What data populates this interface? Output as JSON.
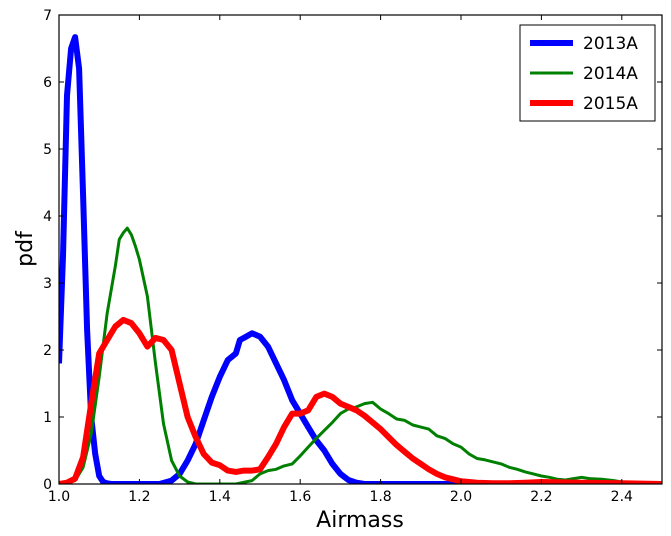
{
  "chart_data": {
    "type": "line",
    "title": "",
    "xlabel": "Airmass",
    "ylabel": "pdf",
    "xlim": [
      1.0,
      2.5
    ],
    "ylim": [
      0,
      7
    ],
    "x_ticks": [
      1.0,
      1.2,
      1.4,
      1.6,
      1.8,
      2.0,
      2.2,
      2.4
    ],
    "x_tick_labels": [
      "1.0",
      "1.2",
      "1.4",
      "1.6",
      "1.8",
      "2.0",
      "2.2",
      "2.4"
    ],
    "y_ticks": [
      0,
      1,
      2,
      3,
      4,
      5,
      6,
      7
    ],
    "y_tick_labels": [
      "0",
      "1",
      "2",
      "3",
      "4",
      "5",
      "6",
      "7"
    ],
    "grid": false,
    "legend_position": "top-right",
    "series": [
      {
        "name": "2013A",
        "color": "#0000ff",
        "line_width": "thick",
        "x": [
          1.0,
          1.01,
          1.02,
          1.03,
          1.04,
          1.05,
          1.06,
          1.07,
          1.08,
          1.09,
          1.1,
          1.11,
          1.12,
          1.13,
          1.15,
          1.2,
          1.25,
          1.28,
          1.3,
          1.32,
          1.34,
          1.36,
          1.38,
          1.4,
          1.42,
          1.44,
          1.45,
          1.46,
          1.48,
          1.5,
          1.52,
          1.54,
          1.56,
          1.58,
          1.6,
          1.62,
          1.64,
          1.66,
          1.68,
          1.7,
          1.72,
          1.74,
          1.76,
          1.8,
          1.9,
          2.0,
          2.5
        ],
        "y": [
          1.8,
          3.4,
          5.8,
          6.5,
          6.67,
          6.2,
          4.3,
          2.3,
          1.0,
          0.45,
          0.12,
          0.03,
          0.01,
          0.0,
          0.0,
          0.0,
          0.0,
          0.05,
          0.15,
          0.35,
          0.6,
          0.95,
          1.3,
          1.6,
          1.85,
          1.95,
          2.15,
          2.18,
          2.25,
          2.2,
          2.05,
          1.8,
          1.55,
          1.25,
          1.05,
          0.85,
          0.65,
          0.5,
          0.3,
          0.15,
          0.06,
          0.02,
          0.0,
          0.0,
          0.0,
          0.0,
          0.0
        ]
      },
      {
        "name": "2014A",
        "color": "#008000",
        "line_width": "medium",
        "x": [
          1.0,
          1.04,
          1.06,
          1.08,
          1.1,
          1.12,
          1.14,
          1.15,
          1.16,
          1.17,
          1.18,
          1.19,
          1.2,
          1.22,
          1.24,
          1.26,
          1.28,
          1.3,
          1.32,
          1.34,
          1.36,
          1.4,
          1.44,
          1.48,
          1.5,
          1.52,
          1.54,
          1.56,
          1.58,
          1.6,
          1.62,
          1.64,
          1.66,
          1.68,
          1.7,
          1.72,
          1.74,
          1.76,
          1.78,
          1.8,
          1.82,
          1.84,
          1.86,
          1.88,
          1.9,
          1.92,
          1.94,
          1.96,
          1.98,
          2.0,
          2.02,
          2.04,
          2.06,
          2.08,
          2.1,
          2.12,
          2.14,
          2.16,
          2.18,
          2.2,
          2.22,
          2.24,
          2.26,
          2.28,
          2.3,
          2.32,
          2.35,
          2.38,
          2.4,
          2.45,
          2.5
        ],
        "y": [
          0.0,
          0.05,
          0.25,
          0.75,
          1.6,
          2.55,
          3.25,
          3.65,
          3.75,
          3.82,
          3.72,
          3.55,
          3.35,
          2.8,
          1.8,
          0.9,
          0.35,
          0.12,
          0.03,
          0.0,
          0.0,
          0.0,
          0.0,
          0.05,
          0.15,
          0.2,
          0.22,
          0.27,
          0.3,
          0.42,
          0.55,
          0.68,
          0.8,
          0.92,
          1.05,
          1.12,
          1.15,
          1.2,
          1.22,
          1.12,
          1.05,
          0.97,
          0.95,
          0.88,
          0.85,
          0.82,
          0.72,
          0.68,
          0.6,
          0.55,
          0.45,
          0.38,
          0.36,
          0.33,
          0.3,
          0.25,
          0.22,
          0.18,
          0.15,
          0.12,
          0.1,
          0.07,
          0.06,
          0.08,
          0.1,
          0.08,
          0.07,
          0.05,
          0.03,
          0.01,
          0.0
        ]
      },
      {
        "name": "2015A",
        "color": "#ff0000",
        "line_width": "thick",
        "x": [
          1.0,
          1.02,
          1.04,
          1.06,
          1.08,
          1.1,
          1.12,
          1.14,
          1.16,
          1.18,
          1.2,
          1.22,
          1.24,
          1.26,
          1.28,
          1.3,
          1.32,
          1.34,
          1.36,
          1.38,
          1.4,
          1.42,
          1.44,
          1.46,
          1.48,
          1.5,
          1.52,
          1.54,
          1.56,
          1.58,
          1.6,
          1.62,
          1.64,
          1.66,
          1.68,
          1.7,
          1.72,
          1.74,
          1.76,
          1.78,
          1.8,
          1.82,
          1.84,
          1.86,
          1.88,
          1.9,
          1.92,
          1.94,
          1.96,
          1.98,
          2.0,
          2.04,
          2.08,
          2.12,
          2.16,
          2.2,
          2.3,
          2.4,
          2.5
        ],
        "y": [
          0.0,
          0.02,
          0.08,
          0.4,
          1.2,
          1.95,
          2.15,
          2.35,
          2.45,
          2.4,
          2.25,
          2.05,
          2.18,
          2.15,
          2.0,
          1.5,
          1.0,
          0.7,
          0.45,
          0.32,
          0.28,
          0.2,
          0.18,
          0.2,
          0.2,
          0.22,
          0.4,
          0.6,
          0.85,
          1.05,
          1.05,
          1.1,
          1.3,
          1.35,
          1.3,
          1.2,
          1.15,
          1.1,
          1.02,
          0.92,
          0.82,
          0.7,
          0.58,
          0.48,
          0.38,
          0.3,
          0.22,
          0.15,
          0.1,
          0.07,
          0.04,
          0.02,
          0.01,
          0.01,
          0.02,
          0.03,
          0.02,
          0.01,
          0.0
        ]
      }
    ]
  }
}
